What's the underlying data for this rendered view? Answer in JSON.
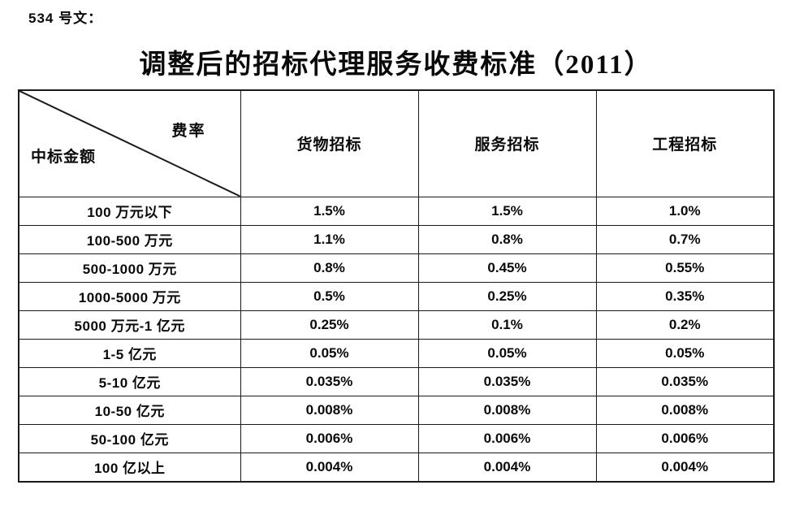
{
  "doc": {
    "ref_label": "534 号文："
  },
  "title": "调整后的招标代理服务收费标准（2011）",
  "table": {
    "corner": {
      "top_right": "费率",
      "bottom_left": "中标金额"
    },
    "columns": [
      "货物招标",
      "服务招标",
      "工程招标"
    ],
    "rows": [
      {
        "amount": "100 万元以下",
        "values": [
          "1.5%",
          "1.5%",
          "1.0%"
        ]
      },
      {
        "amount": "100-500 万元",
        "values": [
          "1.1%",
          "0.8%",
          "0.7%"
        ]
      },
      {
        "amount": "500-1000 万元",
        "values": [
          "0.8%",
          "0.45%",
          "0.55%"
        ]
      },
      {
        "amount": "1000-5000 万元",
        "values": [
          "0.5%",
          "0.25%",
          "0.35%"
        ]
      },
      {
        "amount": "5000 万元-1 亿元",
        "values": [
          "0.25%",
          "0.1%",
          "0.2%"
        ]
      },
      {
        "amount": "1-5 亿元",
        "values": [
          "0.05%",
          "0.05%",
          "0.05%"
        ]
      },
      {
        "amount": "5-10 亿元",
        "values": [
          "0.035%",
          "0.035%",
          "0.035%"
        ]
      },
      {
        "amount": "10-50 亿元",
        "values": [
          "0.008%",
          "0.008%",
          "0.008%"
        ]
      },
      {
        "amount": "50-100 亿元",
        "values": [
          "0.006%",
          "0.006%",
          "0.006%"
        ]
      },
      {
        "amount": "100 亿以上",
        "values": [
          "0.004%",
          "0.004%",
          "0.004%"
        ]
      }
    ]
  },
  "colors": {
    "text": "#0a0a0a",
    "border": "#1a1a1a",
    "background": "#ffffff"
  }
}
